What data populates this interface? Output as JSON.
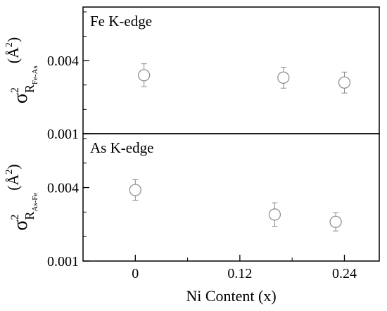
{
  "chart_data": [
    {
      "type": "scatter",
      "panel_label": "Fe K-edge",
      "ylabel": {
        "main": "σ",
        "sup": "2",
        "sub_base": "R",
        "sub_sub": "Fe-As",
        "unit": "(Å",
        "unit_sup": "2",
        "unit_close": ")"
      },
      "xlim": [
        -0.06,
        0.28
      ],
      "ylim": [
        0.001,
        0.0062
      ],
      "yticks": [
        0.001,
        0.004
      ],
      "ytick_labels": [
        "0.001",
        "0.004"
      ],
      "x": [
        0.01,
        0.17,
        0.24
      ],
      "y": [
        0.0034,
        0.0033,
        0.0031
      ],
      "yerr": [
        0.00047,
        0.00043,
        0.00043
      ],
      "grid": false
    },
    {
      "type": "scatter",
      "panel_label": "As K-edge",
      "ylabel": {
        "main": "σ",
        "sup": "2",
        "sub_base": "R",
        "sub_sub": "As-Fe",
        "unit": "(Å",
        "unit_sup": "2",
        "unit_close": ")"
      },
      "xlim": [
        -0.06,
        0.28
      ],
      "ylim": [
        0.001,
        0.0062
      ],
      "yticks": [
        0.001,
        0.004
      ],
      "ytick_labels": [
        "0.001",
        "0.004"
      ],
      "xticks": [
        0,
        0.12,
        0.24
      ],
      "xtick_labels": [
        "0",
        "0.12",
        "0.24"
      ],
      "xlabel": "Ni Content (x)",
      "x": [
        0.0,
        0.16,
        0.23
      ],
      "y": [
        0.0039,
        0.0029,
        0.0026
      ],
      "yerr": [
        0.00042,
        0.00048,
        0.00037
      ],
      "grid": false
    }
  ]
}
